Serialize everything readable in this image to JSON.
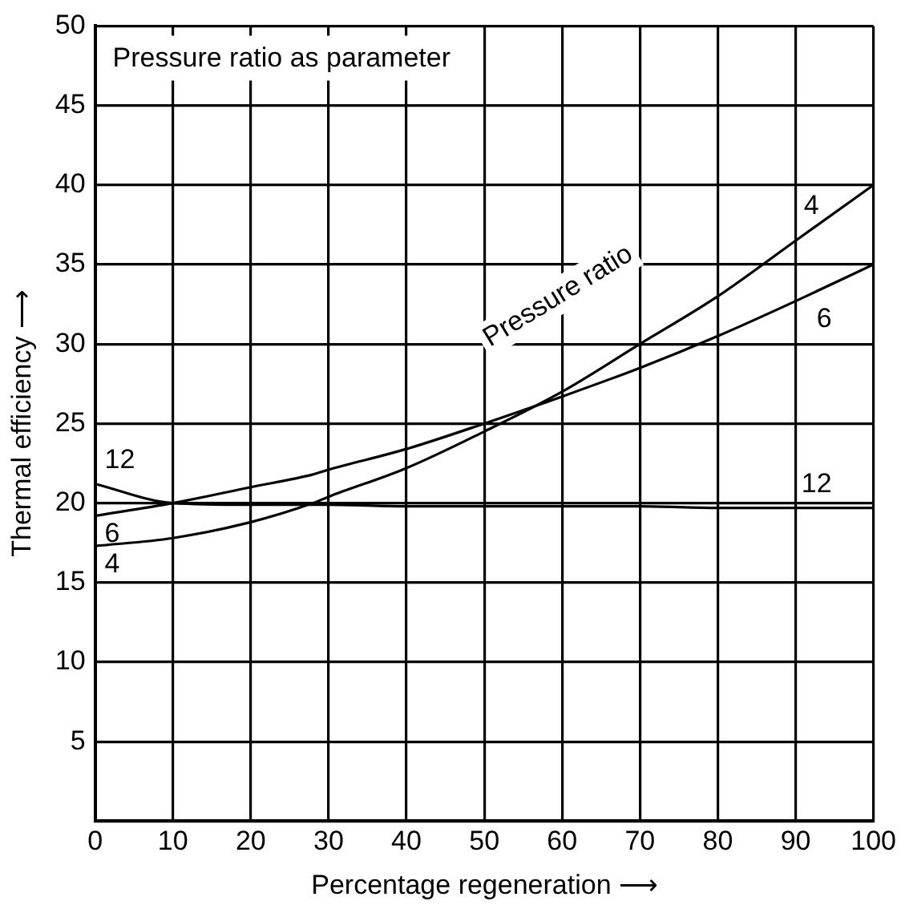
{
  "chart_data": {
    "type": "line",
    "xlabel": "Percentage regeneration ⟶",
    "ylabel": "Thermal efficiency ⟶",
    "x": [
      0,
      10,
      20,
      28,
      30,
      40,
      50,
      60,
      70,
      80,
      90,
      100
    ],
    "series": [
      {
        "name": "4",
        "color": "#000000",
        "values": [
          17.3,
          17.8,
          18.8,
          20,
          20.4,
          22.2,
          24.5,
          27,
          30,
          33,
          36.5,
          40
        ]
      },
      {
        "name": "6",
        "color": "#000000",
        "values": [
          19.2,
          20,
          21,
          21.8,
          22.1,
          23.4,
          25,
          26.7,
          28.5,
          30.5,
          32.7,
          35
        ]
      },
      {
        "name": "12",
        "color": "#000000",
        "values": [
          21.2,
          20,
          19.9,
          19.9,
          19.9,
          19.8,
          19.8,
          19.8,
          19.8,
          19.7,
          19.7,
          19.7
        ]
      }
    ],
    "xlim": [
      0,
      100
    ],
    "xticks": [
      0,
      10,
      20,
      30,
      40,
      50,
      60,
      70,
      80,
      90,
      100
    ],
    "ylim": [
      0,
      50
    ],
    "yticks": [
      {
        "value": 0,
        "label": null
      },
      5,
      10,
      15,
      20,
      25,
      30,
      35,
      40,
      45,
      50
    ],
    "grid": true,
    "legend": false,
    "marker": "none",
    "line_style": "solid",
    "annotations": [
      "Pressure ratio as parameter",
      "Pressure ratio"
    ]
  }
}
